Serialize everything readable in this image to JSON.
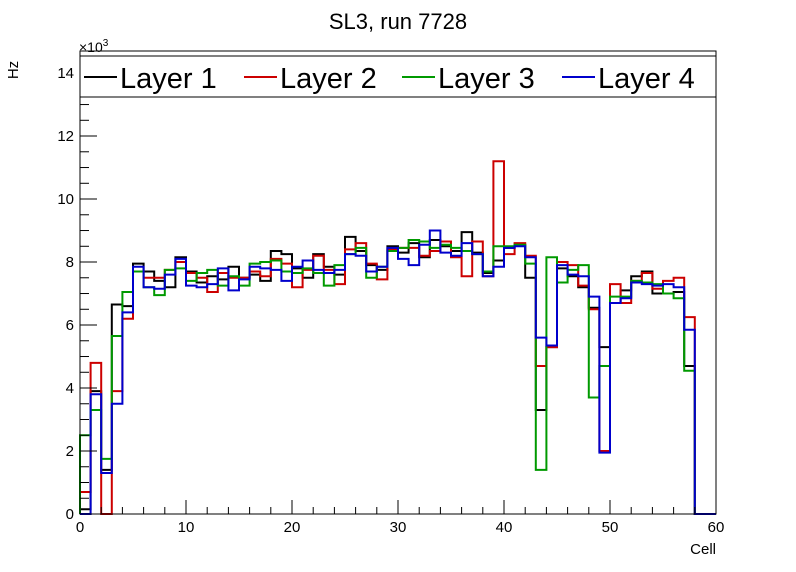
{
  "chart_data": {
    "type": "histogram-step",
    "title": "SL3, run 7728",
    "xlabel": "Cell",
    "ylabel": "Hz",
    "y_multiplier_label": "×10",
    "y_multiplier_exponent": "3",
    "xlim": [
      0,
      60
    ],
    "ylim": [
      0,
      14.7
    ],
    "x_ticks": [
      0,
      10,
      20,
      30,
      40,
      50,
      60
    ],
    "y_ticks": [
      0,
      2,
      4,
      6,
      8,
      10,
      12,
      14
    ],
    "legend_position": "top",
    "series": [
      {
        "name": "Layer 1",
        "color": "#000000",
        "values": [
          0.15,
          3.9,
          1.4,
          6.65,
          6.6,
          7.95,
          7.7,
          7.4,
          7.2,
          8.15,
          7.7,
          7.35,
          7.55,
          7.45,
          7.85,
          7.5,
          7.6,
          7.4,
          8.35,
          8.25,
          7.8,
          7.5,
          8.25,
          7.85,
          7.6,
          8.8,
          8.35,
          7.9,
          7.75,
          8.5,
          8.3,
          8.6,
          8.15,
          8.7,
          8.5,
          8.35,
          8.95,
          8.3,
          7.65,
          8.05,
          8.45,
          8.55,
          7.5,
          3.3,
          5.3,
          7.8,
          7.55,
          7.2,
          6.55,
          5.3,
          6.7,
          7.1,
          7.55,
          7.7,
          7.0,
          7.0,
          7.05,
          4.7,
          0.0,
          0.0
        ]
      },
      {
        "name": "Layer 2",
        "color": "#cc0000",
        "values": [
          0.7,
          4.8,
          0.0,
          3.9,
          6.2,
          7.7,
          7.5,
          7.5,
          7.75,
          8.0,
          7.65,
          7.5,
          7.05,
          7.65,
          7.5,
          7.5,
          7.7,
          7.55,
          8.1,
          7.95,
          7.2,
          7.75,
          8.2,
          7.75,
          7.3,
          8.4,
          8.6,
          7.95,
          7.45,
          8.4,
          8.45,
          8.45,
          8.2,
          8.35,
          8.65,
          8.15,
          7.55,
          8.65,
          7.55,
          11.2,
          8.25,
          8.6,
          8.2,
          4.7,
          5.3,
          8.0,
          7.9,
          7.25,
          6.5,
          2.0,
          7.3,
          6.7,
          7.4,
          7.65,
          7.15,
          7.4,
          7.5,
          6.25,
          0.0,
          0.0
        ]
      },
      {
        "name": "Layer 3",
        "color": "#009900",
        "values": [
          2.5,
          3.3,
          1.75,
          5.65,
          7.05,
          7.7,
          7.2,
          6.95,
          7.75,
          7.8,
          7.4,
          7.65,
          7.75,
          7.25,
          7.55,
          7.25,
          7.95,
          8.0,
          8.05,
          7.7,
          7.65,
          7.8,
          7.65,
          7.25,
          7.9,
          8.25,
          8.45,
          7.5,
          7.85,
          8.35,
          8.45,
          8.7,
          8.65,
          8.45,
          8.55,
          8.45,
          8.35,
          8.25,
          7.7,
          8.5,
          8.5,
          8.55,
          7.95,
          1.4,
          8.15,
          7.35,
          7.75,
          7.9,
          3.7,
          4.7,
          6.9,
          6.9,
          7.4,
          7.35,
          7.3,
          7.0,
          6.85,
          4.55,
          0.0,
          0.0
        ]
      },
      {
        "name": "Layer 4",
        "color": "#0000cc",
        "values": [
          0.0,
          3.8,
          1.3,
          3.5,
          6.4,
          7.85,
          7.2,
          7.15,
          7.6,
          8.1,
          7.25,
          7.2,
          7.3,
          7.8,
          7.1,
          7.45,
          7.85,
          7.8,
          7.75,
          7.4,
          7.85,
          8.05,
          7.75,
          7.65,
          7.75,
          8.25,
          8.2,
          7.7,
          7.85,
          8.45,
          8.1,
          7.9,
          8.55,
          9.0,
          8.3,
          8.2,
          8.6,
          8.25,
          7.55,
          7.85,
          8.45,
          8.5,
          8.15,
          5.6,
          5.35,
          7.9,
          7.6,
          7.55,
          6.9,
          1.95,
          6.7,
          6.85,
          7.35,
          7.3,
          7.25,
          7.3,
          7.2,
          5.85,
          0.0,
          0.0
        ]
      }
    ]
  }
}
